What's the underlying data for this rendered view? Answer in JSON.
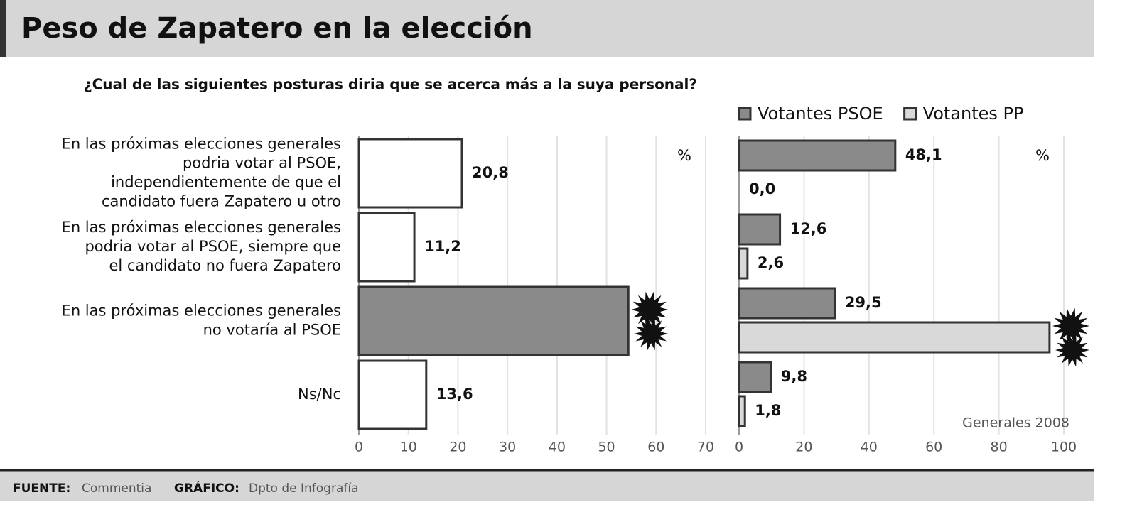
{
  "header": {
    "title": "Peso de Zapatero en la elección",
    "subtitle": "¿Cual de las siguientes posturas diria que se acerca más a la suya personal?"
  },
  "chart_data": [
    {
      "type": "bar",
      "orientation": "horizontal",
      "categories": [
        "En las próximas elecciones generales\npodria votar al PSOE,\nindependientemente de que el\ncandidato fuera Zapatero u otro",
        "En las próximas elecciones generales\npodria votar al PSOE, siempre que\nel candidato no fuera Zapatero",
        "En las próximas elecciones generales\nno votaría al PSOE",
        "Ns/Nc"
      ],
      "values": [
        20.8,
        11.2,
        54.4,
        13.6
      ],
      "value_labels": [
        "20,8",
        "11,2",
        null,
        "13,6"
      ],
      "colors": [
        "#ffffff",
        "#ffffff",
        "#8a8a8a",
        "#ffffff"
      ],
      "unit_label": "%",
      "xlim": [
        0,
        70
      ],
      "xticks": [
        0,
        10,
        20,
        30,
        40,
        50,
        60,
        70
      ],
      "grid": true
    },
    {
      "type": "bar",
      "orientation": "horizontal",
      "series": [
        {
          "name": "Votantes PSOE",
          "color": "#8a8a8a",
          "values": [
            48.1,
            12.6,
            29.5,
            9.8
          ],
          "value_labels": [
            "48,1",
            "12,6",
            "29,5",
            "9,8"
          ]
        },
        {
          "name": "Votantes PP",
          "color": "#d9d9d9",
          "values": [
            0.0,
            2.6,
            95.6,
            1.8
          ],
          "value_labels": [
            "0,0",
            "2,6",
            null,
            "1,8"
          ]
        }
      ],
      "unit_label": "%",
      "annotation": "Generales 2008",
      "xlim": [
        0,
        100
      ],
      "xticks": [
        0,
        20,
        40,
        60,
        80,
        100
      ],
      "grid": true,
      "legend": "top"
    }
  ],
  "footer": {
    "source_label": "FUENTE:",
    "source": "Commentia",
    "graphic_label": "GRÁFICO:",
    "graphic": "Dpto de Infografía"
  }
}
